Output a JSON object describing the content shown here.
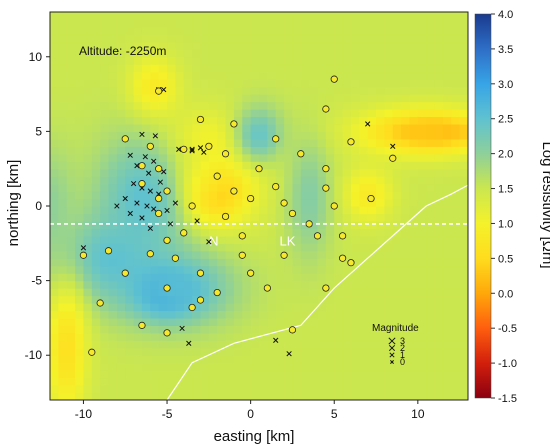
{
  "chart_data": {
    "type": "heatmap",
    "title": "Altitude: -2250m",
    "xlabel": "easting [km]",
    "ylabel": "northing [km]",
    "xlim": [
      -12,
      13
    ],
    "ylim": [
      -13,
      13
    ],
    "xticks": [
      -10,
      -5,
      0,
      5,
      10
    ],
    "yticks": [
      10,
      5,
      0,
      -5,
      -10
    ],
    "colorbar": {
      "label": "Log resistivity [Ωm]",
      "range": [
        -1.5,
        4.0
      ],
      "ticks": [
        "4.0",
        "3.5",
        "3.0",
        "2.5",
        "2.0",
        "1.5",
        "1.0",
        "0.5",
        "0.0",
        "-0.5",
        "-1.0",
        "-1.5"
      ],
      "colors": [
        "#8b0010",
        "#d21f0c",
        "#ff5e0e",
        "#ffa80a",
        "#ffdc1e",
        "#f4f22a",
        "#cbe74f",
        "#8ed09a",
        "#5fc2d0",
        "#37a4e6",
        "#2e6ec7",
        "#1a3a8e"
      ]
    },
    "background_value": 1.5,
    "anomalies": [
      {
        "x": -2.5,
        "y": 1.5,
        "rx": 1.4,
        "ry": 1.6,
        "value": -1.0
      },
      {
        "x": -2.5,
        "y": 1.5,
        "rx": 2.6,
        "ry": 2.8,
        "value": 0.2
      },
      {
        "x": -2.7,
        "y": 3.8,
        "rx": 3.5,
        "ry": 2.5,
        "value": 0.9
      },
      {
        "x": -5.8,
        "y": 7.8,
        "rx": 1.5,
        "ry": 2.2,
        "value": 0.7
      },
      {
        "x": 11.0,
        "y": 5.0,
        "rx": 2.3,
        "ry": 0.8,
        "value": -0.5
      },
      {
        "x": 10.5,
        "y": 5.0,
        "rx": 4.0,
        "ry": 1.6,
        "value": 0.3
      },
      {
        "x": 7.0,
        "y": 0.8,
        "rx": 1.5,
        "ry": 1.8,
        "value": 0.8
      },
      {
        "x": -6.5,
        "y": 0.5,
        "rx": 2.8,
        "ry": 4.5,
        "value": 2.5
      },
      {
        "x": -8.5,
        "y": -3.5,
        "rx": 3.0,
        "ry": 2.8,
        "value": 2.5
      },
      {
        "x": -5.0,
        "y": -5.8,
        "rx": 1.6,
        "ry": 1.4,
        "value": 3.6
      },
      {
        "x": -4.5,
        "y": -5.5,
        "rx": 3.5,
        "ry": 2.5,
        "value": 2.6
      },
      {
        "x": 0.5,
        "y": 4.8,
        "rx": 1.5,
        "ry": 2.0,
        "value": 2.4
      },
      {
        "x": 3.5,
        "y": 0.5,
        "rx": 1.3,
        "ry": 4.0,
        "value": 2.1
      },
      {
        "x": -11.0,
        "y": -9.5,
        "rx": 1.2,
        "ry": 4.5,
        "value": 0.6
      },
      {
        "x": -12.0,
        "y": 0.0,
        "rx": 1.5,
        "ry": 4.0,
        "value": 2.0
      }
    ],
    "reference_line": {
      "y": -1.2
    },
    "labels": [
      {
        "text": "N",
        "x": -2.2,
        "y": -2.3
      },
      {
        "text": "LK",
        "x": 2.2,
        "y": -2.3
      }
    ],
    "boundary_line": [
      [
        -5,
        -13
      ],
      [
        -3.5,
        -10.5
      ],
      [
        -1,
        -9.2
      ],
      [
        3,
        -8.0
      ],
      [
        5,
        -5.5
      ],
      [
        7,
        -3.5
      ],
      [
        9,
        -1.5
      ],
      [
        10.5,
        0
      ],
      [
        12,
        0.8
      ],
      [
        13,
        1.4
      ]
    ],
    "legend": {
      "title": "Magnitude",
      "entries": [
        "3",
        "2",
        "1",
        "0"
      ]
    },
    "stations": [
      [
        -5.5,
        7.7
      ],
      [
        5,
        8.5
      ],
      [
        -3,
        5.8
      ],
      [
        -1,
        5.5
      ],
      [
        1.5,
        4.5
      ],
      [
        4.5,
        6.5
      ],
      [
        -7.5,
        4.5
      ],
      [
        -6,
        4.0
      ],
      [
        -2.5,
        4.0
      ],
      [
        -4,
        3.8
      ],
      [
        -1.5,
        3.5
      ],
      [
        3,
        3.5
      ],
      [
        6,
        4.3
      ],
      [
        8.5,
        3.2
      ],
      [
        -6.5,
        2.7
      ],
      [
        -5.5,
        2.5
      ],
      [
        -2,
        2.0
      ],
      [
        0.5,
        2.5
      ],
      [
        4.5,
        2.5
      ],
      [
        -6.5,
        1.5
      ],
      [
        -5,
        1.0
      ],
      [
        -1,
        1.0
      ],
      [
        1.5,
        1.3
      ],
      [
        4.5,
        1.2
      ],
      [
        -5.5,
        0.5
      ],
      [
        -3.5,
        0.0
      ],
      [
        0,
        0.5
      ],
      [
        2,
        0.2
      ],
      [
        5,
        0.0
      ],
      [
        7.2,
        0.5
      ],
      [
        -5.5,
        -0.5
      ],
      [
        -1.5,
        -0.7
      ],
      [
        2.5,
        -0.5
      ],
      [
        3.5,
        -1.2
      ],
      [
        -5,
        -2.3
      ],
      [
        -4,
        -1.8
      ],
      [
        -0.5,
        -2.0
      ],
      [
        4,
        -2.0
      ],
      [
        5.5,
        -2.0
      ],
      [
        -10,
        -3.3
      ],
      [
        -8.5,
        -3.0
      ],
      [
        -6,
        -3.2
      ],
      [
        -4.5,
        -3.5
      ],
      [
        -0.5,
        -3.3
      ],
      [
        2,
        -3.3
      ],
      [
        5.5,
        -3.5
      ],
      [
        6,
        -3.8
      ],
      [
        -7.5,
        -4.5
      ],
      [
        -3,
        -4.5
      ],
      [
        0,
        -4.5
      ],
      [
        -5,
        -5.5
      ],
      [
        -2,
        -5.8
      ],
      [
        -3,
        -6.3
      ],
      [
        1,
        -5.5
      ],
      [
        4.5,
        -5.5
      ],
      [
        -9,
        -6.5
      ],
      [
        -3.5,
        -6.8
      ],
      [
        -6.5,
        -8.0
      ],
      [
        -5,
        -8.5
      ],
      [
        2.5,
        -8.3
      ],
      [
        -9.5,
        -9.8
      ]
    ],
    "earthquakes": [
      [
        -5.5,
        7.8
      ],
      [
        -5.2,
        7.8
      ],
      [
        -6.5,
        4.8
      ],
      [
        -5.7,
        4.7
      ],
      [
        -4.3,
        3.8
      ],
      [
        -3.5,
        3.7
      ],
      [
        -3,
        3.9
      ],
      [
        -2.8,
        3.6
      ],
      [
        -6.3,
        3.3
      ],
      [
        -5.8,
        3.0
      ],
      [
        -7.2,
        3.4
      ],
      [
        -6.8,
        2.7
      ],
      [
        -6.1,
        2.2
      ],
      [
        -5.2,
        2.3
      ],
      [
        -7.0,
        1.5
      ],
      [
        -6.5,
        1.2
      ],
      [
        -6,
        1.0
      ],
      [
        -5.5,
        0.8
      ],
      [
        -7.5,
        0.5
      ],
      [
        -6.8,
        0.2
      ],
      [
        -6.2,
        0.0
      ],
      [
        -5.8,
        -0.2
      ],
      [
        -5.0,
        -0.3
      ],
      [
        -7.2,
        -0.5
      ],
      [
        -6.5,
        -0.8
      ],
      [
        -4.8,
        -1.2
      ],
      [
        -6,
        -1.5
      ],
      [
        -8.0,
        0.0
      ],
      [
        -4.5,
        0.2
      ],
      [
        -5.4,
        1.6
      ],
      [
        -3.2,
        -1.0
      ],
      [
        -10.0,
        -2.8
      ],
      [
        -2.5,
        -2.4
      ],
      [
        -3.5,
        3.8
      ],
      [
        7.0,
        5.5
      ],
      [
        8.5,
        4.0
      ],
      [
        1.5,
        -9.0
      ],
      [
        2.3,
        -9.9
      ],
      [
        -4.1,
        -8.2
      ],
      [
        -3.7,
        -9.2
      ]
    ]
  }
}
